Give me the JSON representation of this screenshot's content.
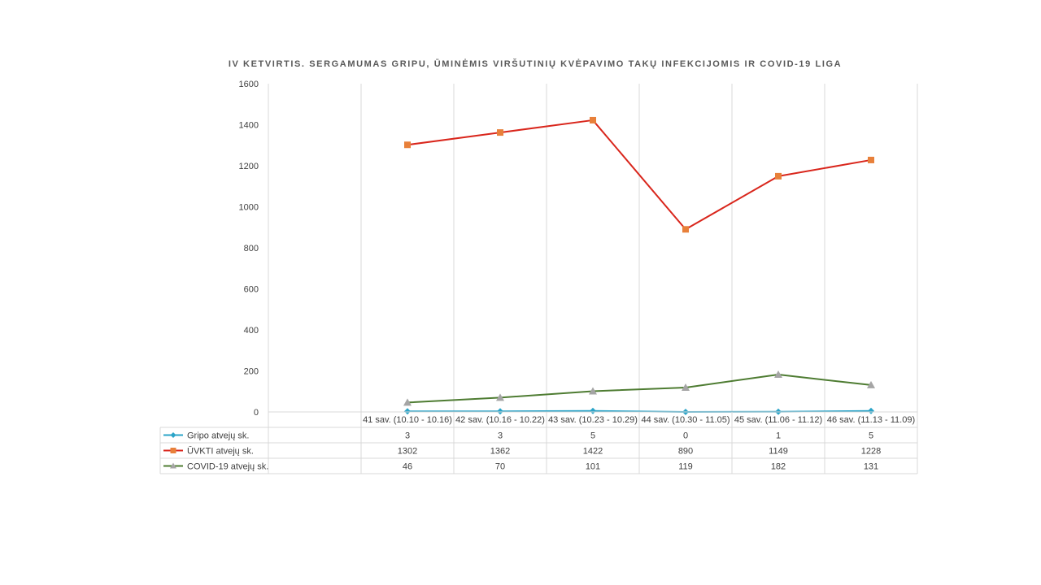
{
  "chart_data": {
    "type": "line",
    "title": "IV KETVIRTIS. SERGAMUMAS GRIPU, ŪMINĖMIS VIRŠUTINIŲ KVĖPAVIMO TAKŲ INFEKCIJOMIS IR COVID-19 LIGA",
    "xlabel": "",
    "ylabel": "",
    "ylim": [
      0,
      1600
    ],
    "yticks": [
      0,
      200,
      400,
      600,
      800,
      1000,
      1200,
      1400,
      1600
    ],
    "grid": "vertical",
    "legend": "data-table",
    "categories": [
      "",
      "41 sav. (10.10 - 10.16)",
      "42 sav. (10.16 - 10.22)",
      "43 sav. (10.23 - 10.29)",
      "44 sav. (10.30 - 11.05)",
      "45 sav. (11.06 - 11.12)",
      "46 sav. (11.13 - 11.09)"
    ],
    "series": [
      {
        "name": "Gripo atvejų sk.",
        "color": "#2BA4C8",
        "marker": "diamond",
        "values": [
          null,
          3,
          3,
          5,
          0,
          1,
          5
        ]
      },
      {
        "name": "ŪVKTI atvejų sk.",
        "color": "#D9261C",
        "marker": "square",
        "marker_color": "#E8803A",
        "values": [
          null,
          1302,
          1362,
          1422,
          890,
          1149,
          1228
        ]
      },
      {
        "name": "COVID-19 atvejų sk.",
        "color": "#4E7C32",
        "marker": "triangle",
        "marker_color": "#A5A5A5",
        "values": [
          null,
          46,
          70,
          101,
          119,
          182,
          131
        ]
      }
    ]
  }
}
